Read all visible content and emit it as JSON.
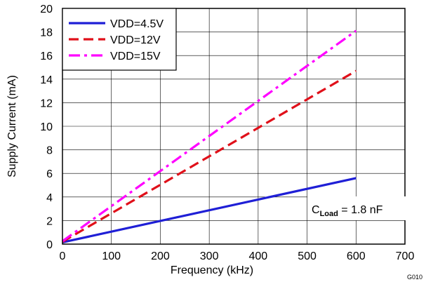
{
  "chart_data": {
    "type": "line",
    "xlabel": "Frequency (kHz)",
    "ylabel": "Supply Current (mA)",
    "xlim": [
      0,
      700
    ],
    "ylim": [
      0,
      20
    ],
    "xticks": [
      0,
      100,
      200,
      300,
      400,
      500,
      600,
      700
    ],
    "yticks": [
      0,
      2,
      4,
      6,
      8,
      10,
      12,
      14,
      16,
      18,
      20
    ],
    "grid": true,
    "legend_position": "top-left",
    "series": [
      {
        "name": "VDD=4.5V",
        "color": "#1f1fd6",
        "dash": "solid",
        "x": [
          0,
          600
        ],
        "y": [
          0.15,
          5.6
        ]
      },
      {
        "name": "VDD=12V",
        "color": "#e0101a",
        "dash": "dash",
        "x": [
          0,
          600
        ],
        "y": [
          0.2,
          14.7
        ]
      },
      {
        "name": "VDD=15V",
        "color": "#ff00ff",
        "dash": "dashdot",
        "x": [
          0,
          600
        ],
        "y": [
          0.25,
          18.1
        ]
      }
    ],
    "annotation": {
      "prefix": "C",
      "subscript": "Load",
      "suffix": " = 1.8 nF"
    },
    "figure_id": "G010"
  }
}
